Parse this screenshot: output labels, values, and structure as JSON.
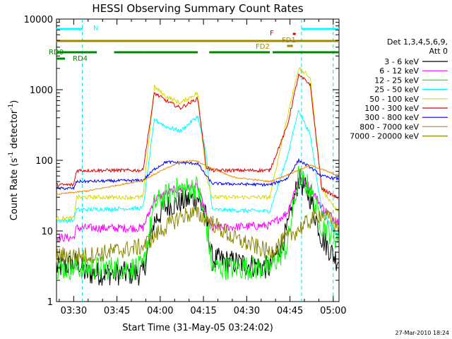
{
  "chart_data": {
    "type": "line",
    "title": "HESSI Observing Summary Count Rates",
    "xlabel": "Start Time (31-May-05 03:24:02)",
    "ylabel_main": "Count Rate (s",
    "ylabel_sup1": "-1",
    "ylabel_mid": " detector",
    "ylabel_sup2": "-1",
    "ylabel_end": ")",
    "y_scale": "log",
    "ylim": [
      1,
      10000
    ],
    "xlim": [
      "03:24:02",
      "05:02:00"
    ],
    "x_ticks": [
      "03:30",
      "03:45",
      "04:00",
      "04:15",
      "04:30",
      "04:45",
      "05:00"
    ],
    "y_ticks": [
      "1",
      "10",
      "100",
      "1000",
      "10000"
    ],
    "legend_title_1": "Det 1,3,4,5,6,9,",
    "legend_title_2": "Att 0",
    "footer_date": "27-Mar-2010 18:24",
    "series": [
      {
        "name": "3 - 6 keV",
        "color": "#000000",
        "levels": [
          [
            "03:24",
            3
          ],
          [
            "03:32",
            3.5
          ],
          [
            "03:34",
            2.5
          ],
          [
            "03:54",
            2.5
          ],
          [
            "03:58",
            14
          ],
          [
            "04:02",
            22
          ],
          [
            "04:08",
            26
          ],
          [
            "04:13",
            30
          ],
          [
            "04:16",
            15
          ],
          [
            "04:18",
            4
          ],
          [
            "04:38",
            3
          ],
          [
            "04:44",
            10
          ],
          [
            "04:48",
            55
          ],
          [
            "04:52",
            30
          ],
          [
            "04:56",
            8
          ],
          [
            "05:01",
            4
          ]
        ]
      },
      {
        "name": "6 - 12 keV",
        "color": "#ff00ff",
        "levels": [
          [
            "03:24",
            8
          ],
          [
            "03:30",
            8
          ],
          [
            "03:31",
            11
          ],
          [
            "03:54",
            11
          ],
          [
            "03:58",
            28
          ],
          [
            "04:05",
            38
          ],
          [
            "04:13",
            42
          ],
          [
            "04:16",
            16
          ],
          [
            "04:18",
            11
          ],
          [
            "04:38",
            12
          ],
          [
            "04:44",
            18
          ],
          [
            "04:48",
            55
          ],
          [
            "04:52",
            42
          ],
          [
            "04:56",
            22
          ],
          [
            "05:01",
            14
          ]
        ]
      },
      {
        "name": "12 - 25 keV",
        "color": "#00ff00",
        "levels": [
          [
            "03:24",
            3
          ],
          [
            "03:54",
            3
          ],
          [
            "03:58",
            24
          ],
          [
            "04:05",
            38
          ],
          [
            "04:13",
            42
          ],
          [
            "04:16",
            12
          ],
          [
            "04:18",
            3
          ],
          [
            "04:38",
            3
          ],
          [
            "04:44",
            6
          ],
          [
            "04:48",
            60
          ],
          [
            "04:52",
            40
          ],
          [
            "04:56",
            12
          ],
          [
            "05:01",
            8
          ]
        ]
      },
      {
        "name": "25 - 50 keV",
        "color": "#00ffff",
        "levels": [
          [
            "03:24",
            14
          ],
          [
            "03:30",
            14
          ],
          [
            "03:31",
            20
          ],
          [
            "03:54",
            21
          ],
          [
            "03:58",
            380
          ],
          [
            "04:02",
            300
          ],
          [
            "04:07",
            260
          ],
          [
            "04:13",
            420
          ],
          [
            "04:16",
            120
          ],
          [
            "04:18",
            20
          ],
          [
            "04:38",
            19
          ],
          [
            "04:44",
            110
          ],
          [
            "04:48",
            520
          ],
          [
            "04:52",
            230
          ],
          [
            "04:56",
            20
          ],
          [
            "05:01",
            9
          ]
        ]
      },
      {
        "name": "50 - 100 keV",
        "color": "#d8d800",
        "levels": [
          [
            "03:24",
            15
          ],
          [
            "03:30",
            15
          ],
          [
            "03:31",
            30
          ],
          [
            "03:54",
            30
          ],
          [
            "03:58",
            1100
          ],
          [
            "04:02",
            800
          ],
          [
            "04:07",
            650
          ],
          [
            "04:13",
            900
          ],
          [
            "04:16",
            60
          ],
          [
            "04:18",
            30
          ],
          [
            "04:38",
            30
          ],
          [
            "04:44",
            400
          ],
          [
            "04:48",
            2000
          ],
          [
            "04:52",
            1500
          ],
          [
            "04:56",
            40
          ],
          [
            "05:01",
            20
          ]
        ]
      },
      {
        "name": "100 - 300 keV",
        "color": "#dd0000",
        "levels": [
          [
            "03:24",
            45
          ],
          [
            "03:30",
            45
          ],
          [
            "03:31",
            72
          ],
          [
            "03:54",
            72
          ],
          [
            "03:58",
            900
          ],
          [
            "04:02",
            700
          ],
          [
            "04:07",
            550
          ],
          [
            "04:13",
            750
          ],
          [
            "04:16",
            80
          ],
          [
            "04:18",
            72
          ],
          [
            "04:38",
            72
          ],
          [
            "04:44",
            300
          ],
          [
            "04:48",
            1600
          ],
          [
            "04:52",
            1200
          ],
          [
            "04:56",
            40
          ],
          [
            "05:01",
            30
          ]
        ]
      },
      {
        "name": "300 - 800 keV",
        "color": "#0000ee",
        "levels": [
          [
            "03:24",
            40
          ],
          [
            "03:30",
            40
          ],
          [
            "03:31",
            50
          ],
          [
            "03:54",
            52
          ],
          [
            "03:58",
            75
          ],
          [
            "04:02",
            95
          ],
          [
            "04:13",
            90
          ],
          [
            "04:16",
            60
          ],
          [
            "04:18",
            47
          ],
          [
            "04:38",
            45
          ],
          [
            "04:44",
            55
          ],
          [
            "04:48",
            100
          ],
          [
            "04:52",
            80
          ],
          [
            "04:56",
            60
          ],
          [
            "05:01",
            55
          ]
        ]
      },
      {
        "name": "800 - 7000 keV",
        "color": "#ee8800",
        "levels": [
          [
            "03:24",
            33
          ],
          [
            "03:35",
            37
          ],
          [
            "03:54",
            52
          ],
          [
            "04:00",
            70
          ],
          [
            "04:07",
            95
          ],
          [
            "04:12",
            100
          ],
          [
            "04:17",
            80
          ],
          [
            "04:25",
            58
          ],
          [
            "04:38",
            50
          ],
          [
            "04:44",
            62
          ],
          [
            "04:52",
            85
          ],
          [
            "04:56",
            75
          ],
          [
            "05:01",
            62
          ]
        ]
      },
      {
        "name": "7000 - 20000 keV",
        "color": "#888800",
        "levels": [
          [
            "03:24",
            4.5
          ],
          [
            "03:35",
            4.5
          ],
          [
            "03:54",
            6
          ],
          [
            "04:00",
            10
          ],
          [
            "04:07",
            16
          ],
          [
            "04:12",
            18
          ],
          [
            "04:17",
            14
          ],
          [
            "04:25",
            8
          ],
          [
            "04:38",
            5
          ],
          [
            "04:44",
            8
          ],
          [
            "04:52",
            14
          ],
          [
            "04:56",
            18
          ],
          [
            "05:01",
            12
          ]
        ]
      }
    ],
    "markers": {
      "N": {
        "label": "N",
        "color": "#00ffff",
        "intervals": [
          [
            "03:24",
            "03:33"
          ],
          [
            "04:49",
            "05:02"
          ]
        ]
      },
      "F": {
        "label": "F",
        "color": "#dd0000",
        "intervals": [
          [
            "04:46",
            "04:47"
          ]
        ]
      },
      "FD1": {
        "label": "FD1",
        "color": "#a08800",
        "intervals": [
          [
            "03:24",
            "05:02"
          ]
        ]
      },
      "FD2": {
        "label": "FD2",
        "color": "#a08800",
        "intervals": [
          [
            "04:44",
            "04:46"
          ]
        ]
      },
      "RD0": {
        "label": "RD0",
        "color": "#008800",
        "intervals": [
          [
            "03:24",
            "03:38"
          ],
          [
            "03:44",
            "03:55"
          ],
          [
            "03:55",
            "04:13"
          ],
          [
            "04:17",
            "04:38"
          ],
          [
            "04:39",
            "05:02"
          ]
        ]
      },
      "RD4": {
        "label": "RD4",
        "color": "#008800",
        "intervals": [
          [
            "03:24",
            "03:27"
          ]
        ]
      }
    },
    "vlines": [
      "03:33",
      "04:49",
      "05:00"
    ]
  }
}
